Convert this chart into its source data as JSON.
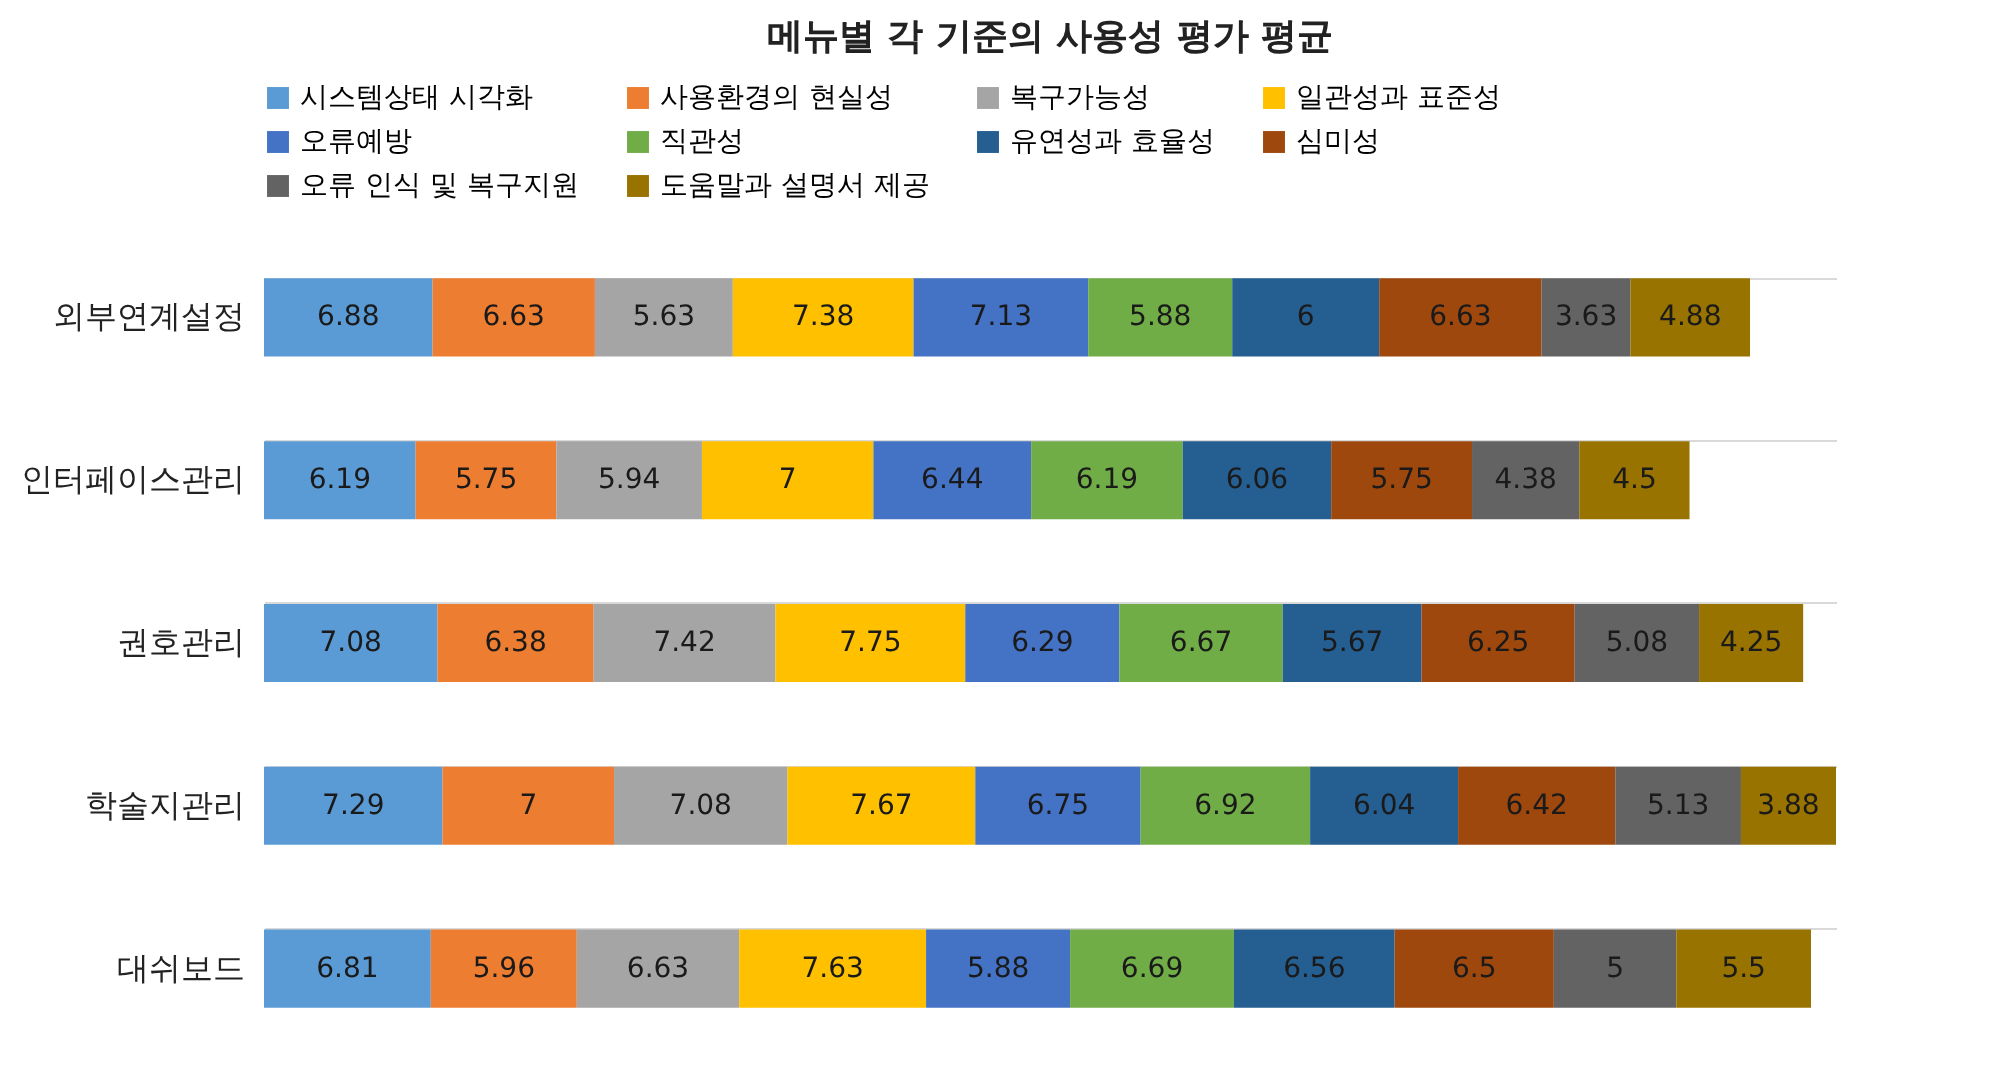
{
  "chart_data": {
    "type": "bar",
    "orientation": "horizontal",
    "stacked": true,
    "title": "메뉴별 각 기준의 사용성 평가 평균",
    "categories": [
      "외부연계설정",
      "인터페이스관리",
      "권호관리",
      "학술지관리",
      "대쉬보드"
    ],
    "series": [
      {
        "name": "시스템상태 시각화",
        "color": "#5b9bd5",
        "values": [
          6.88,
          6.19,
          7.08,
          7.29,
          6.81
        ]
      },
      {
        "name": "사용환경의 현실성",
        "color": "#ed7d31",
        "values": [
          6.63,
          5.75,
          6.38,
          7,
          5.96
        ]
      },
      {
        "name": "복구가능성",
        "color": "#a5a5a5",
        "values": [
          5.63,
          5.94,
          7.42,
          7.08,
          6.63
        ]
      },
      {
        "name": "일관성과 표준성",
        "color": "#ffc000",
        "values": [
          7.38,
          7,
          7.75,
          7.67,
          7.63
        ]
      },
      {
        "name": "오류예방",
        "color": "#4472c4",
        "values": [
          7.13,
          6.44,
          6.29,
          6.75,
          5.88
        ]
      },
      {
        "name": "직관성",
        "color": "#70ad47",
        "values": [
          5.88,
          6.19,
          6.67,
          6.92,
          6.69
        ]
      },
      {
        "name": "유연성과 효율성",
        "color": "#255e91",
        "values": [
          6,
          6.06,
          5.67,
          6.04,
          6.56
        ]
      },
      {
        "name": "심미성",
        "color": "#9e480e",
        "values": [
          6.63,
          5.75,
          6.25,
          6.42,
          6.5
        ]
      },
      {
        "name": "오류 인식 및 복구지원",
        "color": "#636363",
        "values": [
          3.63,
          4.38,
          5.08,
          5.13,
          5
        ]
      },
      {
        "name": "도움말과 설명서 제공",
        "color": "#997300",
        "values": [
          4.88,
          4.5,
          4.25,
          3.88,
          5.5
        ]
      }
    ],
    "data_labels": true,
    "legend": "top",
    "grid": "y"
  }
}
